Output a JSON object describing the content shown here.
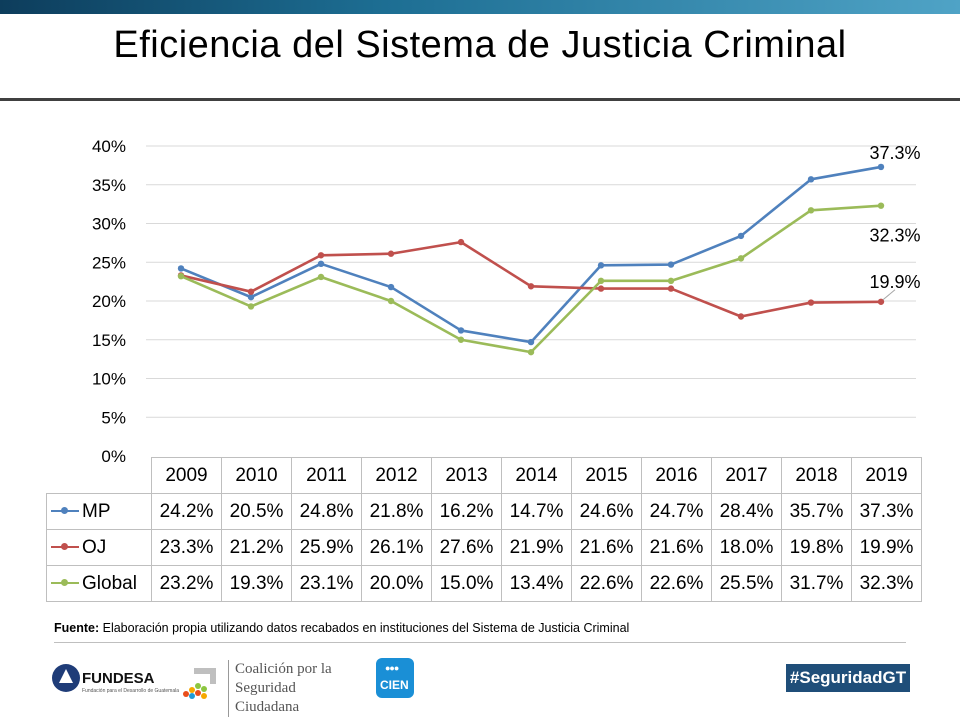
{
  "header": {
    "title": "Eficiencia del Sistema de Justicia Criminal"
  },
  "chart_data": {
    "type": "line",
    "title": "",
    "categories": [
      "2009",
      "2010",
      "2011",
      "2012",
      "2013",
      "2014",
      "2015",
      "2016",
      "2017",
      "2018",
      "2019"
    ],
    "series": [
      {
        "name": "MP",
        "color": "#4f81bd",
        "values": [
          24.2,
          20.5,
          24.8,
          21.8,
          16.2,
          14.7,
          24.6,
          24.7,
          28.4,
          35.7,
          37.3
        ],
        "display": [
          "24.2%",
          "20.5%",
          "24.8%",
          "21.8%",
          "16.2%",
          "14.7%",
          "24.6%",
          "24.7%",
          "28.4%",
          "35.7%",
          "37.3%"
        ]
      },
      {
        "name": "OJ",
        "color": "#c0504d",
        "values": [
          23.3,
          21.2,
          25.9,
          26.1,
          27.6,
          21.9,
          21.6,
          21.6,
          18.0,
          19.8,
          19.9
        ],
        "display": [
          "23.3%",
          "21.2%",
          "25.9%",
          "26.1%",
          "27.6%",
          "21.9%",
          "21.6%",
          "21.6%",
          "18.0%",
          "19.8%",
          "19.9%"
        ]
      },
      {
        "name": "Global",
        "color": "#9bbb59",
        "values": [
          23.2,
          19.3,
          23.1,
          20.0,
          15.0,
          13.4,
          22.6,
          22.6,
          25.5,
          31.7,
          32.3
        ],
        "display": [
          "23.2%",
          "19.3%",
          "23.1%",
          "20.0%",
          "15.0%",
          "13.4%",
          "22.6%",
          "22.6%",
          "25.5%",
          "31.7%",
          "32.3%"
        ]
      }
    ],
    "ylim": [
      0,
      40
    ],
    "yticks": [
      "0%",
      "5%",
      "10%",
      "15%",
      "20%",
      "25%",
      "30%",
      "35%",
      "40%"
    ],
    "end_labels": [
      "37.3%",
      "32.3%",
      "19.9%"
    ],
    "grid": true,
    "legend": "data-table"
  },
  "source": {
    "label": "Fuente:",
    "text": " Elaboración propia utilizando datos recabados en instituciones del Sistema de Justicia Criminal"
  },
  "logos": {
    "fundesa": "FUNDESA",
    "fundesa_sub": "Fundación para el Desarrollo de Guatemala",
    "coalicion_1": "Coalición por la",
    "coalicion_2": "Seguridad Ciudadana",
    "cien": "CIEN",
    "cien_dots": "●●●"
  },
  "hashtag": "#SeguridadGT"
}
